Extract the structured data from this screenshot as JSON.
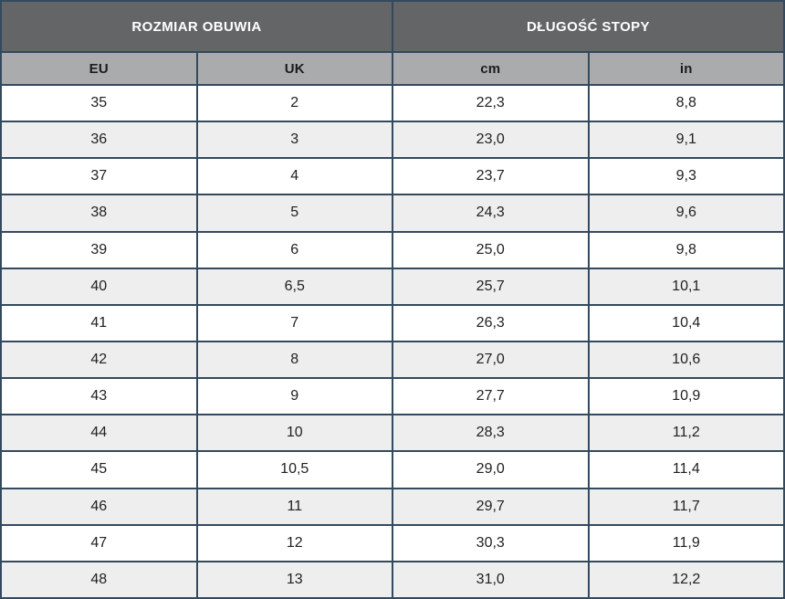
{
  "colors": {
    "border": "#33495e",
    "group_header_bg": "#636566",
    "group_header_text": "#ffffff",
    "column_header_bg": "#a9abad",
    "column_header_text": "#1c1c1e",
    "row_bg": "#ffffff",
    "row_alt_bg": "#eeeeee",
    "cell_text": "#1f1f21"
  },
  "chart_data": {
    "type": "table",
    "group_headers": [
      {
        "label": "ROZMIAR OBUWIA",
        "colspan": 2
      },
      {
        "label": "DŁUGOŚĆ STOPY",
        "colspan": 2
      }
    ],
    "columns": [
      "EU",
      "UK",
      "cm",
      "in"
    ],
    "rows": [
      [
        "35",
        "2",
        "22,3",
        "8,8"
      ],
      [
        "36",
        "3",
        "23,0",
        "9,1"
      ],
      [
        "37",
        "4",
        "23,7",
        "9,3"
      ],
      [
        "38",
        "5",
        "24,3",
        "9,6"
      ],
      [
        "39",
        "6",
        "25,0",
        "9,8"
      ],
      [
        "40",
        "6,5",
        "25,7",
        "10,1"
      ],
      [
        "41",
        "7",
        "26,3",
        "10,4"
      ],
      [
        "42",
        "8",
        "27,0",
        "10,6"
      ],
      [
        "43",
        "9",
        "27,7",
        "10,9"
      ],
      [
        "44",
        "10",
        "28,3",
        "11,2"
      ],
      [
        "45",
        "10,5",
        "29,0",
        "11,4"
      ],
      [
        "46",
        "11",
        "29,7",
        "11,7"
      ],
      [
        "47",
        "12",
        "30,3",
        "11,9"
      ],
      [
        "48",
        "13",
        "31,0",
        "12,2"
      ]
    ]
  }
}
